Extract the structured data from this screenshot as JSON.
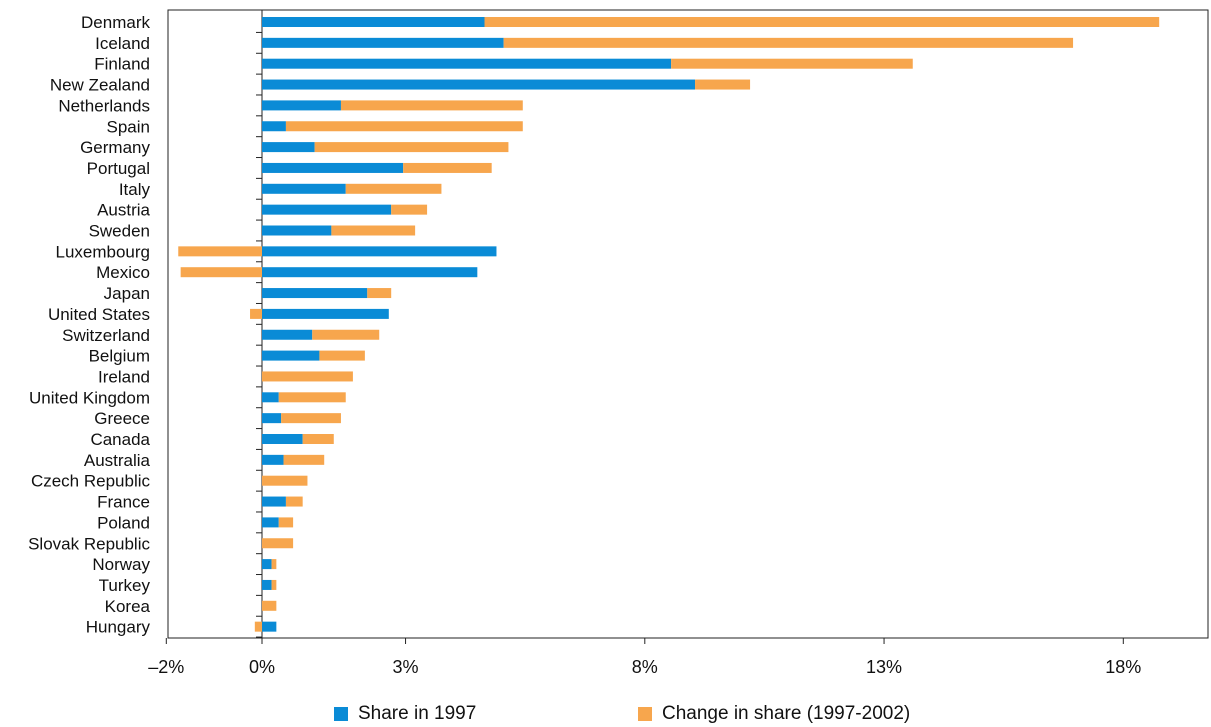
{
  "chart_data": {
    "type": "bar",
    "orientation": "horizontal",
    "stacked": true,
    "categories": [
      "Denmark",
      "Iceland",
      "Finland",
      "New Zealand",
      "Netherlands",
      "Spain",
      "Germany",
      "Portugal",
      "Italy",
      "Austria",
      "Sweden",
      "Luxembourg",
      "Mexico",
      "Japan",
      "United States",
      "Switzerland",
      "Belgium",
      "Ireland",
      "United Kingdom",
      "Greece",
      "Canada",
      "Australia",
      "Czech Republic",
      "France",
      "Poland",
      "Slovak Republic",
      "Norway",
      "Turkey",
      "Korea",
      "Hungary"
    ],
    "series": [
      {
        "name": "Share in 1997",
        "color": "#0a8bd6",
        "values": [
          4.65,
          5.05,
          8.55,
          9.05,
          1.65,
          0.5,
          1.1,
          2.95,
          1.75,
          2.7,
          1.45,
          4.9,
          4.5,
          2.2,
          2.65,
          1.05,
          1.2,
          0.0,
          0.35,
          0.4,
          0.85,
          0.45,
          0.0,
          0.5,
          0.35,
          0.0,
          0.2,
          0.2,
          0.0,
          0.3
        ]
      },
      {
        "name": "Change in share (1997-2002)",
        "color": "#f7a64d",
        "values": [
          14.1,
          11.9,
          5.05,
          1.15,
          3.8,
          4.95,
          4.05,
          1.85,
          2.0,
          0.75,
          1.75,
          -1.75,
          -1.7,
          0.5,
          -0.25,
          1.4,
          0.95,
          1.9,
          1.4,
          1.25,
          0.65,
          0.85,
          0.95,
          0.35,
          0.3,
          0.65,
          0.1,
          0.1,
          0.3,
          -0.15
        ]
      }
    ],
    "xlim": [
      -2,
      20
    ],
    "xticks": [
      -2,
      0,
      3,
      8,
      13,
      18
    ],
    "xtick_labels": [
      "–2%",
      "0%",
      "3%",
      "8%",
      "13%",
      "18%"
    ],
    "legend_position": "bottom",
    "title": "",
    "xlabel": "",
    "ylabel": ""
  }
}
